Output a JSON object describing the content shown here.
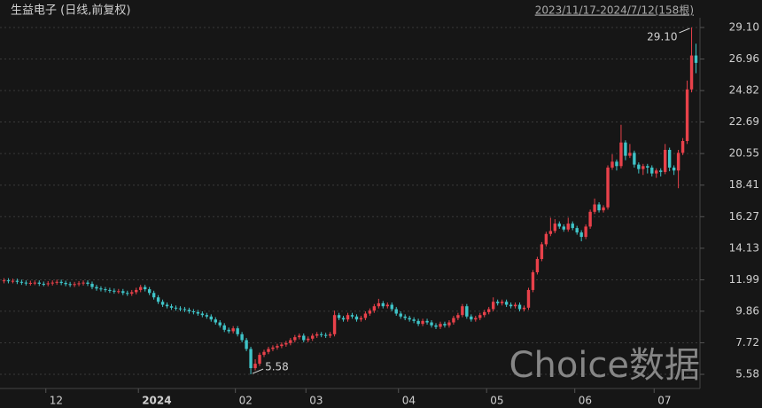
{
  "chart_data": {
    "type": "candlestick",
    "title": "生益电子 (日线,前复权)",
    "subtitle": "2023/11/17-2024/7/12(158根)",
    "watermark": "Choice数据",
    "up_color": "#e8414a",
    "down_color": "#3fc4c8",
    "grid": true,
    "ylim": [
      4.62,
      29.76
    ],
    "yticks": [
      {
        "value": 29.1,
        "label": "29.10"
      },
      26.96,
      24.82,
      22.69,
      20.55,
      18.41,
      16.27,
      14.13,
      11.99,
      9.86,
      7.72,
      5.58
    ],
    "annotations": [
      {
        "value": 29.1,
        "label": "29.10",
        "kind": "high"
      },
      {
        "value": 5.58,
        "label": "5.58",
        "kind": "low"
      }
    ],
    "categories": [
      null,
      null,
      null,
      null,
      null,
      null,
      null,
      null,
      null,
      null,
      "12",
      null,
      null,
      null,
      null,
      null,
      null,
      null,
      null,
      null,
      null,
      null,
      null,
      null,
      null,
      null,
      null,
      null,
      null,
      null,
      null,
      "2024",
      null,
      null,
      null,
      null,
      null,
      null,
      null,
      null,
      null,
      null,
      null,
      null,
      null,
      null,
      null,
      null,
      null,
      null,
      null,
      null,
      null,
      "02",
      null,
      null,
      null,
      null,
      null,
      null,
      null,
      null,
      null,
      null,
      null,
      null,
      null,
      null,
      null,
      "03",
      null,
      null,
      null,
      null,
      null,
      null,
      null,
      null,
      null,
      null,
      null,
      null,
      null,
      null,
      null,
      null,
      null,
      null,
      null,
      null,
      "04",
      null,
      null,
      null,
      null,
      null,
      null,
      null,
      null,
      null,
      null,
      null,
      null,
      null,
      null,
      null,
      null,
      null,
      null,
      null,
      "05",
      null,
      null,
      null,
      null,
      null,
      null,
      null,
      null,
      null,
      null,
      null,
      null,
      null,
      null,
      null,
      null,
      null,
      null,
      null,
      "06",
      null,
      null,
      null,
      null,
      null,
      null,
      null,
      null,
      null,
      null,
      null,
      null,
      null,
      null,
      null,
      null,
      null,
      "07",
      null,
      null,
      null,
      null,
      null,
      null,
      null,
      null,
      null
    ],
    "open": [
      11.9,
      11.95,
      11.9,
      11.92,
      11.85,
      11.8,
      11.75,
      11.78,
      11.8,
      11.72,
      11.7,
      11.75,
      11.8,
      11.85,
      11.78,
      11.7,
      11.65,
      11.7,
      11.75,
      11.8,
      11.72,
      11.5,
      11.4,
      11.35,
      11.3,
      11.25,
      11.2,
      11.22,
      11.1,
      11.05,
      11.15,
      11.3,
      11.5,
      11.35,
      11.1,
      10.8,
      10.5,
      10.3,
      10.2,
      10.1,
      10.05,
      10.0,
      9.95,
      9.85,
      9.8,
      9.7,
      9.6,
      9.5,
      9.3,
      9.1,
      8.9,
      8.6,
      8.5,
      8.7,
      8.3,
      7.9,
      7.3,
      6.0,
      6.3,
      6.9,
      7.1,
      7.3,
      7.4,
      7.5,
      7.6,
      7.7,
      7.9,
      8.1,
      8.2,
      7.9,
      8.0,
      8.2,
      8.3,
      8.25,
      8.2,
      8.3,
      9.6,
      9.4,
      9.3,
      9.6,
      9.5,
      9.3,
      9.4,
      9.7,
      9.9,
      10.2,
      10.4,
      10.2,
      10.3,
      10.0,
      9.7,
      9.5,
      9.4,
      9.3,
      9.2,
      9.0,
      9.2,
      9.1,
      8.9,
      8.8,
      9.0,
      8.9,
      9.1,
      9.4,
      9.6,
      10.2,
      9.5,
      9.3,
      9.4,
      9.6,
      9.8,
      10.0,
      10.5,
      10.4,
      10.5,
      10.3,
      10.2,
      10.3,
      10.0,
      10.1,
      11.3,
      12.5,
      13.4,
      14.4,
      15.1,
      15.3,
      15.8,
      15.6,
      15.4,
      15.8,
      15.5,
      15.2,
      14.9,
      15.6,
      16.6,
      17.1,
      16.7,
      16.9,
      19.6,
      20.0,
      19.7,
      21.3,
      20.4,
      20.6,
      19.8,
      19.5,
      19.7,
      19.6,
      19.2,
      19.4,
      19.3,
      20.8,
      19.6,
      19.4,
      20.6,
      21.4,
      24.9,
      27.2
    ],
    "high": [
      12.1,
      12.1,
      12.07,
      12.07,
      12.0,
      11.95,
      11.93,
      11.95,
      11.95,
      11.87,
      11.9,
      11.95,
      12.0,
      12.0,
      11.93,
      11.85,
      11.85,
      11.9,
      11.95,
      11.95,
      11.87,
      11.65,
      11.55,
      11.5,
      11.45,
      11.4,
      11.37,
      11.37,
      11.25,
      11.3,
      11.45,
      11.65,
      11.65,
      11.5,
      11.25,
      10.95,
      10.65,
      10.45,
      10.35,
      10.25,
      10.2,
      10.15,
      10.1,
      10.0,
      9.95,
      9.85,
      9.75,
      9.65,
      9.45,
      9.25,
      9.05,
      8.75,
      8.85,
      8.85,
      8.45,
      8.05,
      7.45,
      6.6,
      7.05,
      7.25,
      7.45,
      7.55,
      7.65,
      7.75,
      7.85,
      8.05,
      8.25,
      8.35,
      8.35,
      8.15,
      8.35,
      8.45,
      8.45,
      8.4,
      8.45,
      9.9,
      9.75,
      9.55,
      9.75,
      9.75,
      9.65,
      9.55,
      9.85,
      10.05,
      10.35,
      10.7,
      10.55,
      10.45,
      10.45,
      10.15,
      9.85,
      9.65,
      9.55,
      9.45,
      9.35,
      9.35,
      9.35,
      9.25,
      9.05,
      9.15,
      9.15,
      9.25,
      9.55,
      9.75,
      10.35,
      10.35,
      9.65,
      9.55,
      9.75,
      9.95,
      10.15,
      10.8,
      10.65,
      10.65,
      10.65,
      10.45,
      10.45,
      10.45,
      10.25,
      11.45,
      12.65,
      13.55,
      14.55,
      15.25,
      16.2,
      16.1,
      15.95,
      15.75,
      16.2,
      15.95,
      15.65,
      15.35,
      15.75,
      16.75,
      17.5,
      17.25,
      17.05,
      19.75,
      20.5,
      20.15,
      22.5,
      21.45,
      21.2,
      20.75,
      19.95,
      19.85,
      19.85,
      19.75,
      19.55,
      19.55,
      21.2,
      20.95,
      19.75,
      20.8,
      21.6,
      25.5,
      29.1,
      28.0
    ],
    "low": [
      11.75,
      11.75,
      11.75,
      11.7,
      11.65,
      11.6,
      11.6,
      11.63,
      11.57,
      11.55,
      11.55,
      11.6,
      11.65,
      11.63,
      11.55,
      11.5,
      11.5,
      11.55,
      11.6,
      11.57,
      11.35,
      11.25,
      11.2,
      11.15,
      11.1,
      11.05,
      11.05,
      10.95,
      10.9,
      10.9,
      11.0,
      11.15,
      11.2,
      10.95,
      10.65,
      10.35,
      10.15,
      10.05,
      9.95,
      9.9,
      9.85,
      9.8,
      9.7,
      9.65,
      9.55,
      9.45,
      9.35,
      9.15,
      8.95,
      8.75,
      8.45,
      8.35,
      8.35,
      8.15,
      7.75,
      7.15,
      5.58,
      5.85,
      6.15,
      6.75,
      6.95,
      7.15,
      7.25,
      7.35,
      7.45,
      7.55,
      7.75,
      7.95,
      7.75,
      7.75,
      7.85,
      8.05,
      8.1,
      8.05,
      8.05,
      8.15,
      9.25,
      9.15,
      9.15,
      9.35,
      9.15,
      9.15,
      9.25,
      9.55,
      9.75,
      10.05,
      10.05,
      10.05,
      9.85,
      9.55,
      9.35,
      9.25,
      9.15,
      9.05,
      8.85,
      8.85,
      8.95,
      8.75,
      8.65,
      8.65,
      8.75,
      8.75,
      8.95,
      9.25,
      9.45,
      9.35,
      9.15,
      9.15,
      9.25,
      9.45,
      9.65,
      9.85,
      10.25,
      10.25,
      10.15,
      10.05,
      10.05,
      9.85,
      9.85,
      9.95,
      11.15,
      12.35,
      13.25,
      14.25,
      14.95,
      15.15,
      15.45,
      15.25,
      15.25,
      15.35,
      15.05,
      14.6,
      14.75,
      15.45,
      16.45,
      16.55,
      16.55,
      16.75,
      19.45,
      19.4,
      19.55,
      20.1,
      20.25,
      19.6,
      19.2,
      19.1,
      19.2,
      19.0,
      18.9,
      19.0,
      19.15,
      19.35,
      19.1,
      18.2,
      20.45,
      21.2,
      24.7,
      26.0
    ],
    "close": [
      11.95,
      11.9,
      11.92,
      11.85,
      11.8,
      11.75,
      11.78,
      11.8,
      11.72,
      11.7,
      11.75,
      11.8,
      11.85,
      11.78,
      11.7,
      11.65,
      11.7,
      11.75,
      11.8,
      11.72,
      11.5,
      11.4,
      11.35,
      11.3,
      11.25,
      11.2,
      11.22,
      11.1,
      11.05,
      11.15,
      11.3,
      11.5,
      11.35,
      11.1,
      10.8,
      10.5,
      10.3,
      10.2,
      10.1,
      10.05,
      10.0,
      9.95,
      9.85,
      9.8,
      9.7,
      9.6,
      9.5,
      9.3,
      9.1,
      8.9,
      8.6,
      8.5,
      8.7,
      8.3,
      7.9,
      7.3,
      6.0,
      6.3,
      6.9,
      7.1,
      7.3,
      7.4,
      7.5,
      7.6,
      7.7,
      7.9,
      8.1,
      8.2,
      7.9,
      8.0,
      8.2,
      8.3,
      8.25,
      8.2,
      8.3,
      9.6,
      9.4,
      9.3,
      9.6,
      9.5,
      9.3,
      9.4,
      9.7,
      9.9,
      10.2,
      10.4,
      10.2,
      10.3,
      10.0,
      9.7,
      9.5,
      9.4,
      9.3,
      9.2,
      9.0,
      9.2,
      9.1,
      8.9,
      8.8,
      9.0,
      8.9,
      9.1,
      9.4,
      9.6,
      10.2,
      9.5,
      9.3,
      9.4,
      9.6,
      9.8,
      10.0,
      10.5,
      10.4,
      10.5,
      10.3,
      10.2,
      10.3,
      10.0,
      10.1,
      11.3,
      12.5,
      13.4,
      14.4,
      15.1,
      15.3,
      15.8,
      15.6,
      15.4,
      15.8,
      15.5,
      15.2,
      14.9,
      15.6,
      16.6,
      17.1,
      16.7,
      16.9,
      19.6,
      20.0,
      19.7,
      21.3,
      20.4,
      20.6,
      19.8,
      19.5,
      19.7,
      19.6,
      19.2,
      19.4,
      19.3,
      20.8,
      19.6,
      19.4,
      20.6,
      21.4,
      24.9,
      27.2,
      26.7
    ]
  }
}
